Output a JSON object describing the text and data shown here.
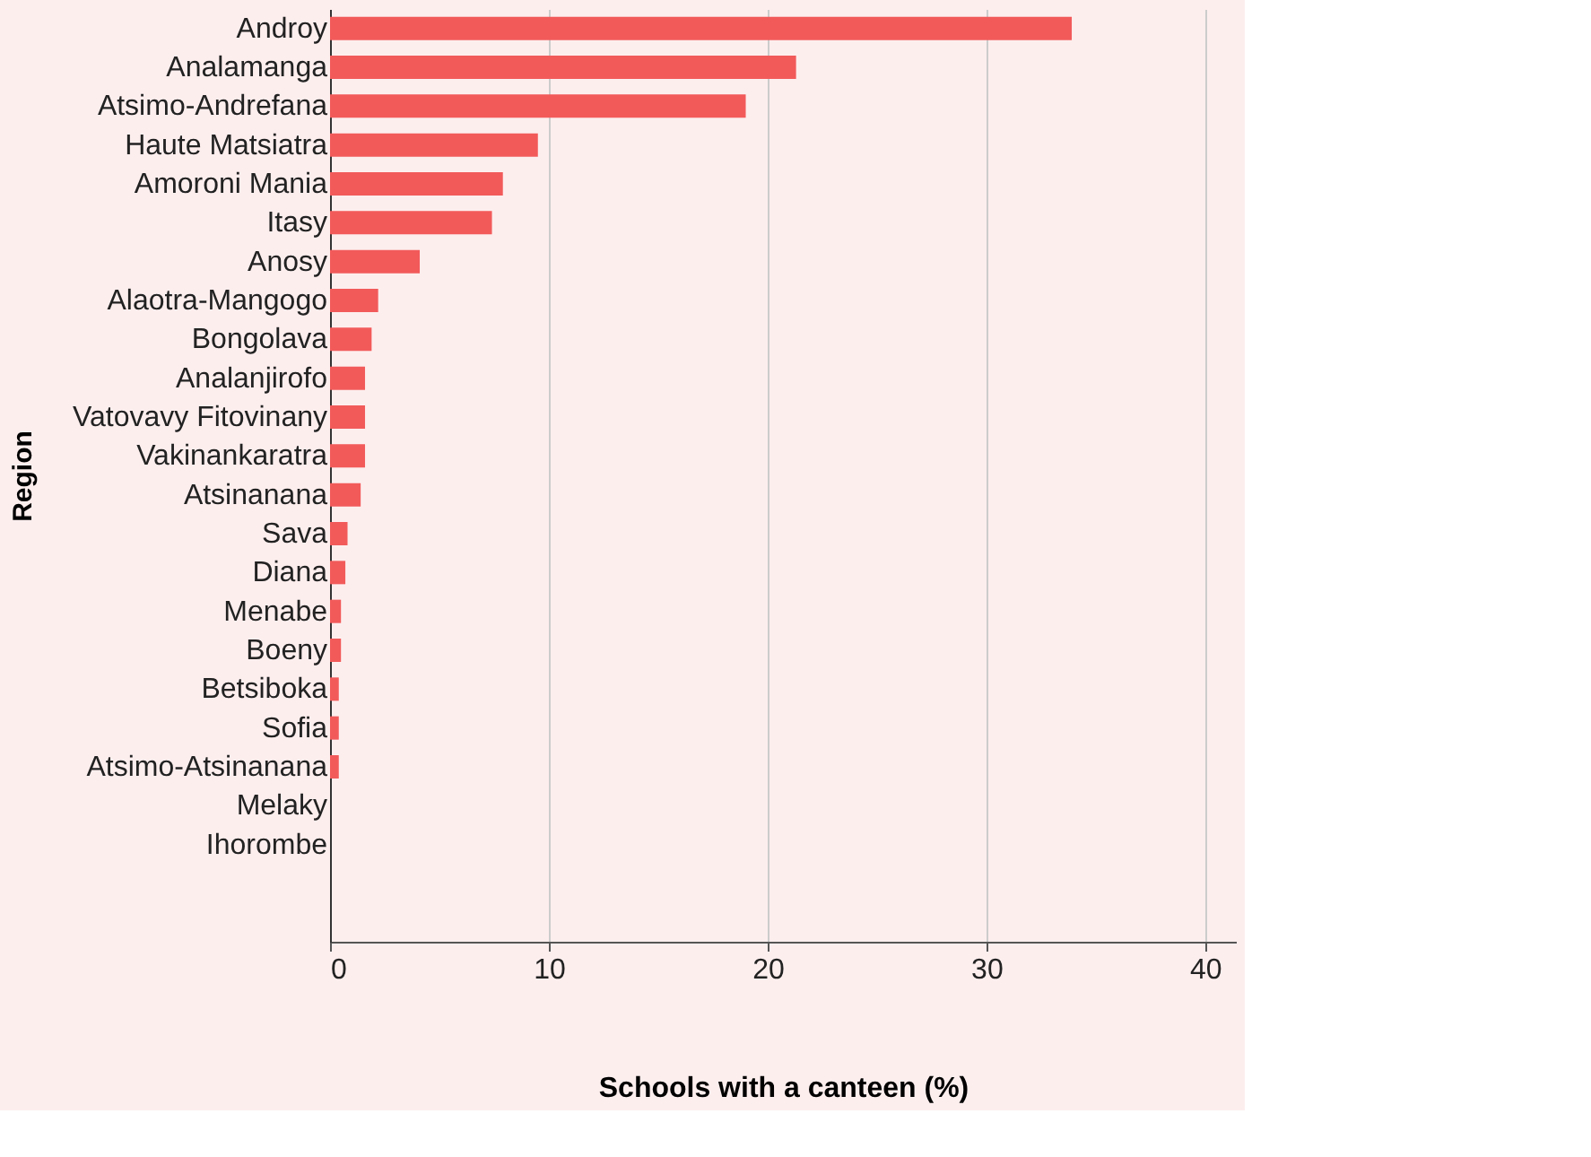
{
  "chart_data": {
    "type": "bar",
    "orientation": "horizontal",
    "xlabel": "Schools with a canteen (%)",
    "ylabel": "Region",
    "categories": [
      "Androy",
      "Analamanga",
      "Atsimo-Andrefana",
      "Haute Matsiatra",
      "Amoroni Mania",
      "Itasy",
      "Anosy",
      "Alaotra-Mangogo",
      "Bongolava",
      "Analanjirofo",
      "Vatovavy Fitovinany",
      "Vakinankaratra",
      "Atsinanana",
      "Sava",
      "Diana",
      "Menabe",
      "Boeny",
      "Betsiboka",
      "Sofia",
      "Atsimo-Atsinanana",
      "Melaky",
      "Ihorombe"
    ],
    "values": [
      33.9,
      21.3,
      19.0,
      9.5,
      7.9,
      7.4,
      4.1,
      2.2,
      1.9,
      1.6,
      1.6,
      1.6,
      1.4,
      0.8,
      0.7,
      0.5,
      0.5,
      0.4,
      0.4,
      0.4,
      0,
      0
    ],
    "color": "#f25a5a",
    "xlim": [
      0,
      41.4
    ],
    "xticks": [
      0,
      10,
      20,
      30,
      40
    ],
    "grid": "x"
  }
}
